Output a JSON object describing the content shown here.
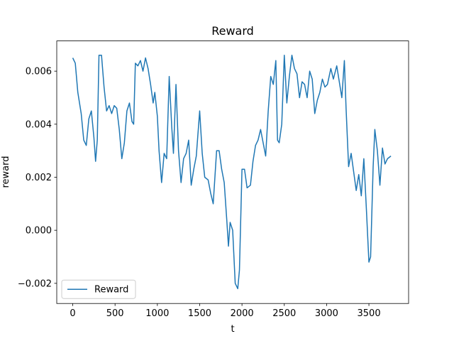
{
  "chart_data": {
    "type": "line",
    "title": "Reward",
    "xlabel": "t",
    "ylabel": "reward",
    "x": [
      0,
      30,
      60,
      100,
      130,
      160,
      190,
      220,
      250,
      270,
      290,
      310,
      340,
      370,
      400,
      430,
      460,
      490,
      520,
      550,
      580,
      610,
      640,
      670,
      700,
      720,
      740,
      770,
      800,
      830,
      860,
      890,
      920,
      950,
      970,
      1000,
      1020,
      1050,
      1080,
      1110,
      1140,
      1170,
      1190,
      1220,
      1250,
      1280,
      1310,
      1340,
      1370,
      1400,
      1430,
      1460,
      1500,
      1530,
      1560,
      1600,
      1630,
      1660,
      1700,
      1730,
      1760,
      1790,
      1820,
      1840,
      1860,
      1890,
      1920,
      1950,
      1970,
      2000,
      2030,
      2060,
      2100,
      2130,
      2160,
      2190,
      2220,
      2250,
      2280,
      2310,
      2340,
      2370,
      2400,
      2420,
      2440,
      2470,
      2500,
      2530,
      2560,
      2590,
      2620,
      2650,
      2680,
      2710,
      2740,
      2770,
      2800,
      2830,
      2860,
      2890,
      2920,
      2950,
      2980,
      3010,
      3050,
      3080,
      3120,
      3150,
      3180,
      3210,
      3230,
      3260,
      3290,
      3320,
      3350,
      3380,
      3410,
      3440,
      3470,
      3500,
      3520,
      3550,
      3570,
      3600,
      3630,
      3660,
      3690,
      3720,
      3760
    ],
    "series": [
      {
        "name": "Reward",
        "color": "#1f77b4",
        "values": [
          0.0065,
          0.0063,
          0.0052,
          0.0044,
          0.0034,
          0.0032,
          0.0042,
          0.0045,
          0.0035,
          0.0026,
          0.0034,
          0.0066,
          0.0066,
          0.0054,
          0.0045,
          0.0047,
          0.0044,
          0.0047,
          0.0046,
          0.0038,
          0.0027,
          0.0033,
          0.0045,
          0.0048,
          0.0041,
          0.004,
          0.0063,
          0.0062,
          0.0064,
          0.006,
          0.0065,
          0.0061,
          0.0055,
          0.0048,
          0.0052,
          0.0043,
          0.003,
          0.0018,
          0.0029,
          0.0027,
          0.0058,
          0.0039,
          0.0029,
          0.0055,
          0.003,
          0.0018,
          0.0027,
          0.0029,
          0.0034,
          0.0017,
          0.0023,
          0.0028,
          0.0045,
          0.0029,
          0.002,
          0.0019,
          0.0014,
          0.001,
          0.003,
          0.003,
          0.0023,
          0.0018,
          0.0004,
          -0.0006,
          0.0003,
          0.0,
          -0.002,
          -0.0022,
          -0.0015,
          0.0023,
          0.0023,
          0.0016,
          0.0017,
          0.0026,
          0.0032,
          0.0034,
          0.0038,
          0.0033,
          0.0028,
          0.0045,
          0.0058,
          0.0055,
          0.0064,
          0.0034,
          0.0033,
          0.004,
          0.0066,
          0.0048,
          0.0058,
          0.0066,
          0.0061,
          0.0059,
          0.005,
          0.0056,
          0.0055,
          0.005,
          0.006,
          0.0057,
          0.0044,
          0.0049,
          0.0052,
          0.0057,
          0.0054,
          0.0055,
          0.0061,
          0.0057,
          0.0062,
          0.0056,
          0.005,
          0.0064,
          0.0046,
          0.0024,
          0.0029,
          0.0022,
          0.0015,
          0.0021,
          0.0013,
          0.0027,
          0.0008,
          -0.0012,
          -0.001,
          0.0024,
          0.0038,
          0.003,
          0.0017,
          0.0031,
          0.0025,
          0.0027,
          0.0028
        ]
      }
    ],
    "xlim": [
      -189,
      3969
    ],
    "xticks": [
      0,
      500,
      1000,
      1500,
      2000,
      2500,
      3000,
      3500
    ],
    "ylim": [
      -0.00276,
      0.00714
    ],
    "yticks": [
      {
        "value": -0.002,
        "label": "−0.002"
      },
      {
        "value": 0.0,
        "label": "0.000"
      },
      {
        "value": 0.002,
        "label": "0.002"
      },
      {
        "value": 0.004,
        "label": "0.004"
      },
      {
        "value": 0.006,
        "label": "0.006"
      }
    ],
    "legend": "lower left",
    "grid": false
  }
}
